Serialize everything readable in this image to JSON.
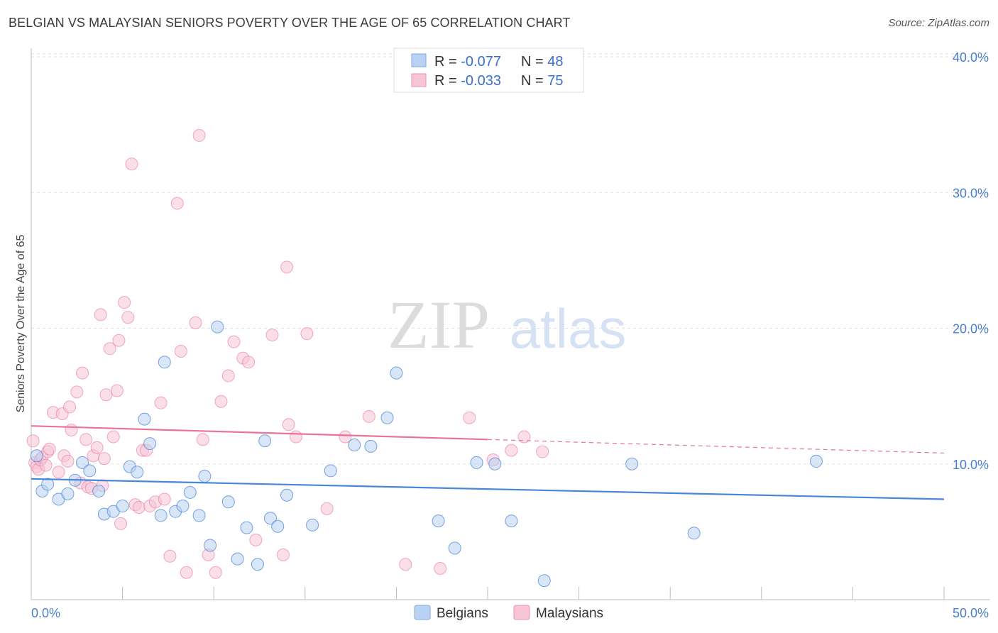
{
  "title": "BELGIAN VS MALAYSIAN SENIORS POVERTY OVER THE AGE OF 65 CORRELATION CHART",
  "source": "Source: ZipAtlas.com",
  "watermark": {
    "zip": "ZIP",
    "atlas": "atlas"
  },
  "legend_top": {
    "rows": [
      {
        "r_label": "R = ",
        "r_value": "-0.077",
        "n_label": "N = ",
        "n_value": "48",
        "color": "#aac8f0"
      },
      {
        "r_label": "R = ",
        "r_value": "-0.033",
        "n_label": "N = ",
        "n_value": "75",
        "color": "#f6b8cb"
      }
    ]
  },
  "legend_bottom": [
    "Belgians",
    "Malaysians"
  ],
  "chart_data": {
    "type": "scatter",
    "title": "BELGIAN VS MALAYSIAN SENIORS POVERTY OVER THE AGE OF 65 CORRELATION CHART",
    "xlabel": "",
    "ylabel": "Seniors Poverty Over the Age of 65",
    "xlim": [
      0,
      50
    ],
    "ylim": [
      0,
      40
    ],
    "x_tick_labels": [
      "0.0%",
      "50.0%"
    ],
    "y_tick_values": [
      10,
      20,
      30,
      40
    ],
    "y_tick_labels": [
      "10.0%",
      "20.0%",
      "30.0%",
      "40.0%"
    ],
    "grid": true,
    "colors": {
      "belgians": "#4a86d8",
      "malaysians": "#e8739a",
      "belgians_fill": "#b9d2f3",
      "malaysians_fill": "#f8c5d5"
    },
    "series": [
      {
        "name": "Belgians",
        "trend": {
          "x0": 0,
          "y0": 8.9,
          "x1": 50,
          "y1": 7.4
        },
        "points": [
          [
            0.3,
            10.6
          ],
          [
            0.6,
            8.0
          ],
          [
            0.9,
            8.5
          ],
          [
            1.5,
            7.4
          ],
          [
            2.0,
            7.8
          ],
          [
            2.4,
            8.8
          ],
          [
            2.8,
            10.1
          ],
          [
            3.2,
            9.5
          ],
          [
            3.7,
            8.0
          ],
          [
            4.0,
            6.3
          ],
          [
            4.5,
            6.5
          ],
          [
            5.0,
            6.9
          ],
          [
            5.4,
            9.8
          ],
          [
            5.8,
            9.4
          ],
          [
            6.2,
            13.3
          ],
          [
            6.5,
            11.5
          ],
          [
            7.1,
            6.2
          ],
          [
            7.3,
            17.5
          ],
          [
            7.9,
            6.5
          ],
          [
            8.3,
            6.9
          ],
          [
            8.7,
            7.9
          ],
          [
            9.2,
            6.2
          ],
          [
            9.5,
            9.1
          ],
          [
            9.8,
            4.0
          ],
          [
            10.2,
            20.1
          ],
          [
            10.8,
            7.2
          ],
          [
            11.3,
            3.0
          ],
          [
            11.8,
            5.3
          ],
          [
            12.4,
            2.6
          ],
          [
            12.8,
            11.7
          ],
          [
            13.1,
            6.0
          ],
          [
            13.5,
            5.4
          ],
          [
            14.0,
            7.7
          ],
          [
            15.4,
            5.5
          ],
          [
            16.4,
            9.5
          ],
          [
            17.7,
            11.4
          ],
          [
            18.6,
            11.3
          ],
          [
            19.5,
            13.4
          ],
          [
            20.0,
            16.7
          ],
          [
            22.3,
            5.8
          ],
          [
            23.2,
            3.8
          ],
          [
            24.4,
            10.1
          ],
          [
            25.4,
            10.0
          ],
          [
            26.3,
            5.8
          ],
          [
            28.1,
            1.4
          ],
          [
            32.9,
            10.0
          ],
          [
            36.3,
            4.9
          ],
          [
            43.0,
            10.2
          ]
        ]
      },
      {
        "name": "Malaysians",
        "trend": {
          "x0": 0,
          "y0": 12.8,
          "x1": 25,
          "y1": 11.8,
          "dash_x1": 50,
          "dash_y1": 10.8
        },
        "points": [
          [
            0.1,
            11.7
          ],
          [
            0.2,
            10.1
          ],
          [
            0.3,
            9.8
          ],
          [
            0.4,
            9.6
          ],
          [
            0.5,
            10.3
          ],
          [
            0.6,
            10.5
          ],
          [
            0.8,
            9.9
          ],
          [
            0.9,
            10.9
          ],
          [
            1.0,
            11.1
          ],
          [
            1.2,
            13.8
          ],
          [
            1.5,
            9.4
          ],
          [
            1.7,
            13.7
          ],
          [
            1.8,
            10.6
          ],
          [
            2.0,
            10.2
          ],
          [
            2.1,
            14.2
          ],
          [
            2.2,
            12.5
          ],
          [
            2.5,
            15.3
          ],
          [
            2.7,
            8.6
          ],
          [
            2.8,
            16.7
          ],
          [
            3.0,
            11.8
          ],
          [
            3.1,
            8.3
          ],
          [
            3.3,
            8.2
          ],
          [
            3.4,
            10.6
          ],
          [
            3.6,
            11.2
          ],
          [
            3.8,
            21.0
          ],
          [
            3.9,
            8.4
          ],
          [
            4.0,
            10.4
          ],
          [
            4.1,
            15.1
          ],
          [
            4.3,
            18.5
          ],
          [
            4.5,
            12.0
          ],
          [
            4.7,
            15.4
          ],
          [
            4.8,
            19.1
          ],
          [
            4.9,
            5.6
          ],
          [
            5.1,
            21.9
          ],
          [
            5.3,
            20.8
          ],
          [
            5.5,
            32.1
          ],
          [
            5.7,
            7.0
          ],
          [
            5.9,
            6.8
          ],
          [
            6.1,
            11.0
          ],
          [
            6.3,
            11.0
          ],
          [
            6.5,
            6.9
          ],
          [
            6.8,
            7.2
          ],
          [
            7.1,
            14.5
          ],
          [
            7.3,
            7.4
          ],
          [
            7.6,
            3.2
          ],
          [
            8.0,
            29.2
          ],
          [
            8.2,
            18.3
          ],
          [
            8.5,
            2.0
          ],
          [
            9.0,
            20.4
          ],
          [
            9.2,
            34.2
          ],
          [
            9.4,
            11.8
          ],
          [
            9.7,
            3.3
          ],
          [
            10.1,
            2.0
          ],
          [
            10.4,
            14.6
          ],
          [
            10.8,
            16.5
          ],
          [
            11.1,
            19.0
          ],
          [
            11.6,
            17.8
          ],
          [
            11.9,
            17.5
          ],
          [
            12.3,
            4.4
          ],
          [
            13.2,
            19.5
          ],
          [
            13.8,
            3.3
          ],
          [
            14.0,
            24.5
          ],
          [
            14.1,
            12.9
          ],
          [
            14.5,
            12.0
          ],
          [
            15.1,
            19.6
          ],
          [
            16.2,
            6.7
          ],
          [
            17.2,
            12.0
          ],
          [
            18.5,
            13.5
          ],
          [
            20.5,
            2.6
          ],
          [
            22.4,
            2.3
          ],
          [
            24.0,
            13.4
          ],
          [
            25.3,
            10.3
          ],
          [
            26.3,
            11.0
          ],
          [
            27.0,
            12.0
          ],
          [
            28.0,
            10.9
          ]
        ]
      }
    ]
  }
}
